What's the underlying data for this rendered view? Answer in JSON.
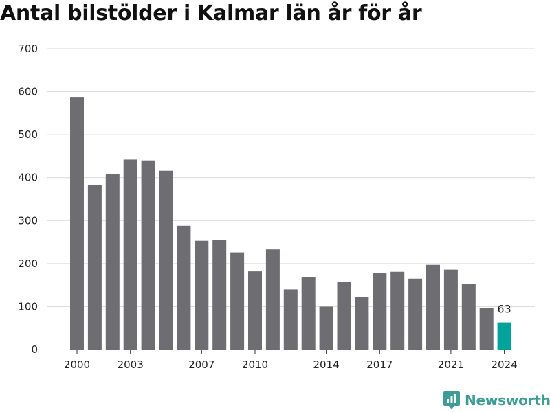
{
  "chart_data": {
    "type": "bar",
    "title": "Antal bilstölder i Kalmar län år för år",
    "xlabel": "",
    "ylabel": "",
    "categories": [
      2000,
      2001,
      2002,
      2003,
      2004,
      2005,
      2006,
      2007,
      2008,
      2009,
      2010,
      2011,
      2012,
      2013,
      2014,
      2015,
      2016,
      2017,
      2018,
      2019,
      2020,
      2021,
      2022,
      2023,
      2024
    ],
    "values": [
      588,
      383,
      408,
      442,
      440,
      416,
      288,
      253,
      255,
      226,
      182,
      233,
      140,
      169,
      100,
      157,
      122,
      178,
      181,
      165,
      197,
      186,
      153,
      96,
      63
    ],
    "x_tick_labels": [
      "2000",
      "2003",
      "2007",
      "2010",
      "2014",
      "2017",
      "2021",
      "2024"
    ],
    "y_ticks": [
      0,
      100,
      200,
      300,
      400,
      500,
      600,
      700
    ],
    "ylim": [
      0,
      700
    ],
    "grid": true,
    "highlight": {
      "category": 2024,
      "label": "63",
      "color": "#00a39a"
    },
    "bar_color": "#6e6d72"
  },
  "branding": {
    "name": "Newsworthy",
    "icon": "newsworthy-logo-icon",
    "color": "#3e9b95"
  }
}
